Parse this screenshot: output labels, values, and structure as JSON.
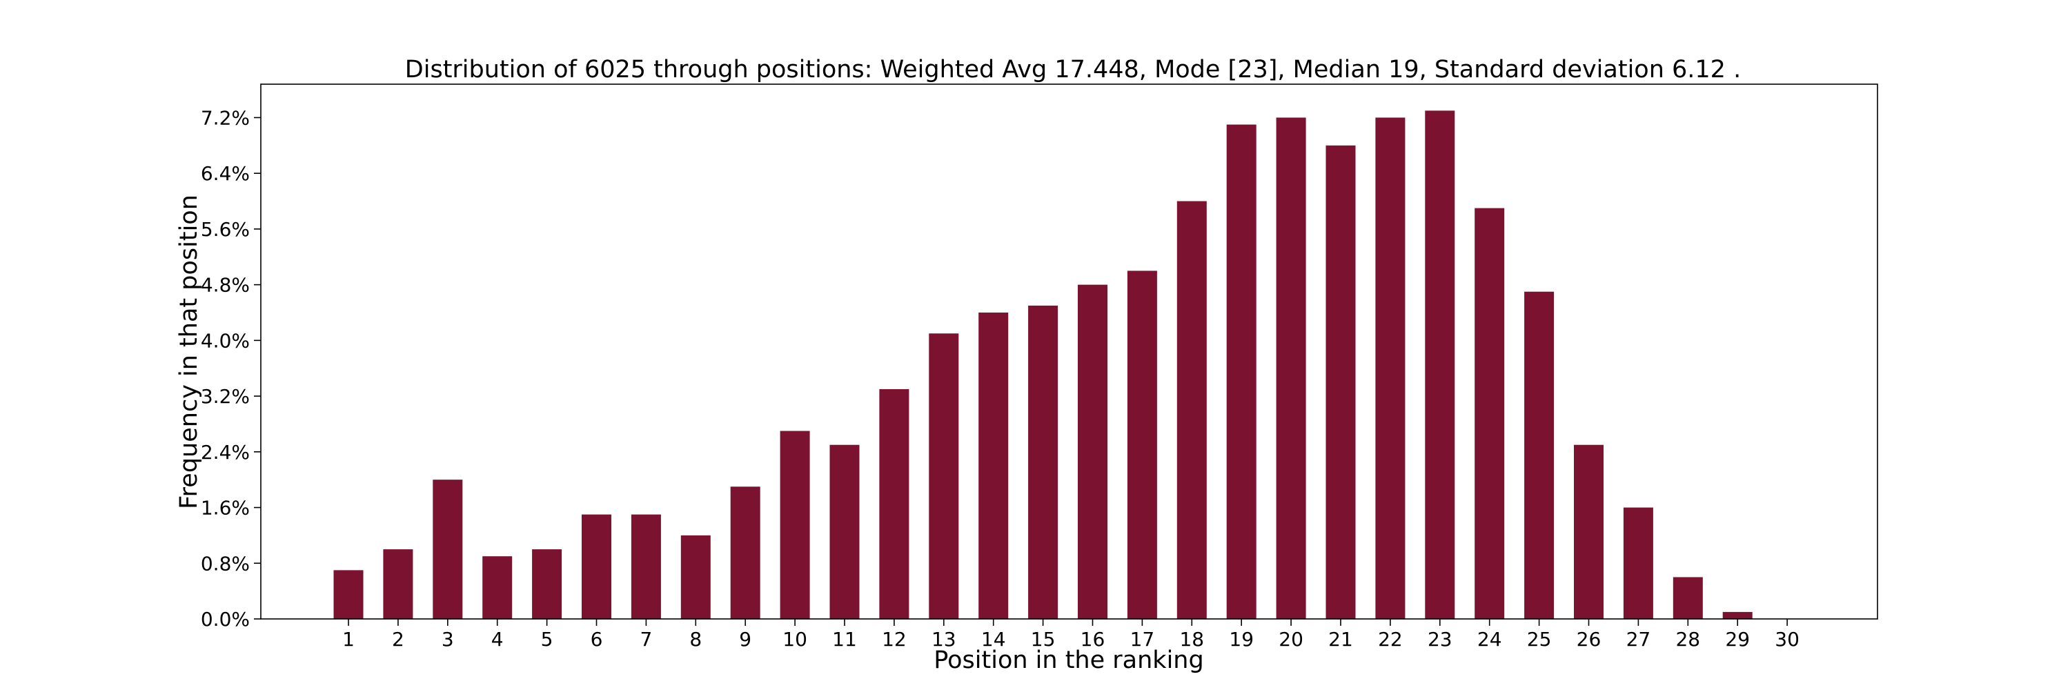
{
  "chart_data": {
    "type": "bar",
    "title": "Distribution of 6025 through positions: Weighted Avg 17.448, Mode [23], Median 19, Standard deviation 6.12 .",
    "xlabel": "Position in the ranking",
    "ylabel": "Frequency in that position",
    "categories": [
      "1",
      "2",
      "3",
      "4",
      "5",
      "6",
      "7",
      "8",
      "9",
      "10",
      "11",
      "12",
      "13",
      "14",
      "15",
      "16",
      "17",
      "18",
      "19",
      "20",
      "21",
      "22",
      "23",
      "24",
      "25",
      "26",
      "27",
      "28",
      "29",
      "30"
    ],
    "values": [
      0.7,
      1.0,
      2.0,
      0.9,
      1.0,
      1.5,
      1.5,
      1.2,
      1.9,
      2.7,
      2.5,
      3.3,
      4.1,
      4.4,
      4.5,
      4.8,
      5.0,
      6.0,
      7.1,
      7.2,
      6.8,
      7.2,
      7.3,
      5.9,
      4.7,
      2.5,
      1.6,
      0.6,
      0.1,
      0.0
    ],
    "value_unit": "%",
    "ylim": [
      0,
      7.68
    ],
    "yticks": [
      "0.0%",
      "0.8%",
      "1.6%",
      "2.4%",
      "3.2%",
      "4.0%",
      "4.8%",
      "5.6%",
      "6.4%",
      "7.2%"
    ],
    "ytick_values": [
      0,
      0.8,
      1.6,
      2.4,
      3.2,
      4.0,
      4.8,
      5.6,
      6.4,
      7.2
    ],
    "grid": false,
    "legend": "none",
    "bar_color": "#7b1230"
  }
}
